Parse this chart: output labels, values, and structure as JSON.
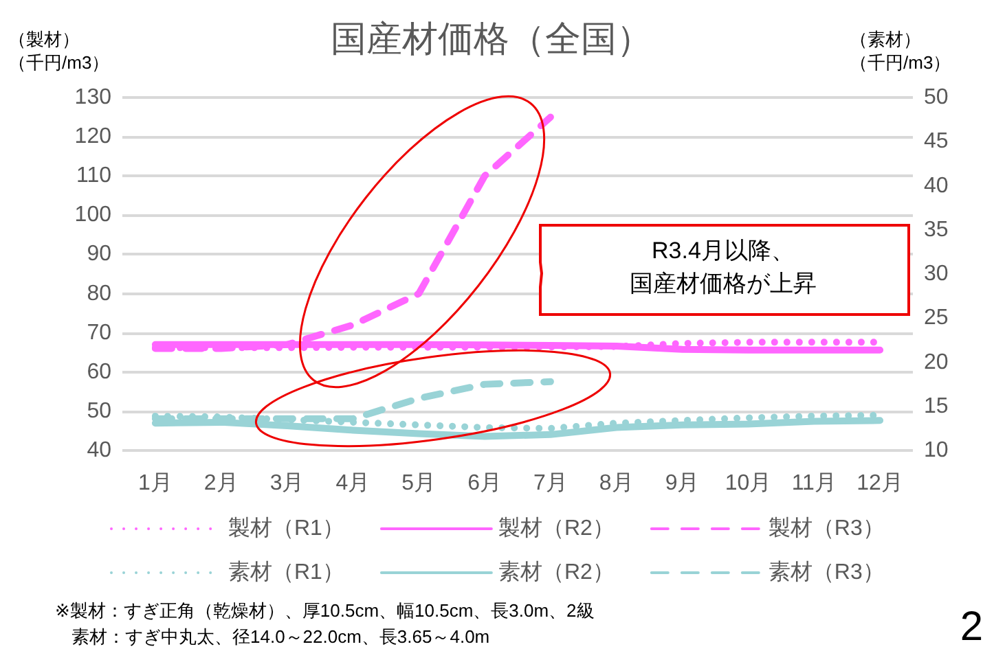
{
  "chart_data": {
    "type": "line",
    "title": "国産材価格（全国）",
    "ylabel": "（製材）（千円/m3）",
    "y2label": "（素材）（千円/m3）",
    "categories": [
      "1月",
      "2月",
      "3月",
      "4月",
      "5月",
      "6月",
      "7月",
      "8月",
      "9月",
      "10月",
      "11月",
      "12月"
    ],
    "ylim": [
      40,
      130
    ],
    "yticks": [
      40,
      50,
      60,
      70,
      80,
      90,
      100,
      110,
      120,
      130
    ],
    "y2lim": [
      10,
      50
    ],
    "y2ticks": [
      10,
      15,
      20,
      25,
      30,
      35,
      40,
      45,
      50
    ],
    "grid": "y",
    "legend": "bottom",
    "marker": "none",
    "series": [
      {
        "name": "製材（R1）",
        "color": "#ff66ff",
        "line_style": "dotted",
        "values": [
          66.2,
          66.2,
          66.2,
          66.3,
          66.3,
          66.3,
          66.4,
          66.5,
          67.3,
          67.6,
          67.6,
          67.6
        ]
      },
      {
        "name": "製材（R2）",
        "color": "#ff66ff",
        "line_style": "solid",
        "values": [
          67.0,
          67.0,
          67.0,
          67.0,
          67.0,
          66.9,
          66.8,
          66.6,
          65.8,
          65.6,
          65.6,
          65.6
        ]
      },
      {
        "name": "製材（R3）",
        "color": "#ff66ff",
        "line_style": "dashed",
        "values": [
          66,
          66,
          67,
          72,
          80,
          110,
          125,
          null,
          null,
          null,
          null,
          null
        ]
      },
      {
        "name": "素材（R1）",
        "color": "#99d3d6",
        "line_style": "dotted",
        "axis": "y2",
        "values": [
          13.9,
          13.8,
          13.5,
          13.2,
          12.9,
          12.6,
          12.5,
          13.1,
          13.4,
          13.7,
          13.9,
          14.0
        ]
      },
      {
        "name": "素材（R2）",
        "color": "#99d3d6",
        "line_style": "solid",
        "axis": "y2",
        "values": [
          13.1,
          13.2,
          12.8,
          12.3,
          11.9,
          11.6,
          11.8,
          12.6,
          12.9,
          13.0,
          13.3,
          13.4
        ]
      },
      {
        "name": "素材（R3）",
        "color": "#99d3d6",
        "line_style": "dashed",
        "axis": "y2",
        "values": [
          13.6,
          13.6,
          13.6,
          13.6,
          15.9,
          17.5,
          17.8,
          null,
          null,
          null,
          null,
          null
        ]
      }
    ],
    "annotations": [
      "R3.4月以降、国産材価格が上昇",
      "※製材：すぎ正角（乾燥材）、厚10.5cm、幅10.5cm、長3.0m、2級",
      "素材：すぎ中丸太、径14.0～22.0cm、長3.65～4.0m",
      "2"
    ]
  }
}
